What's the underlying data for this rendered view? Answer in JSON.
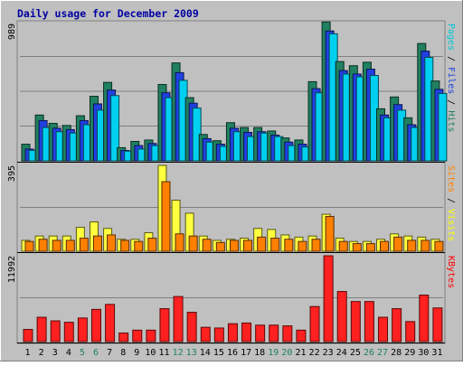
{
  "chart_data": {
    "type": "bar",
    "title": "Daily usage for December 2009",
    "days": [
      "1",
      "2",
      "3",
      "4",
      "5",
      "6",
      "7",
      "8",
      "9",
      "10",
      "11",
      "12",
      "13",
      "14",
      "15",
      "16",
      "17",
      "18",
      "19",
      "20",
      "21",
      "22",
      "23",
      "24",
      "25",
      "26",
      "27",
      "28",
      "29",
      "30",
      "31"
    ],
    "weekend_days": [
      "5",
      "6",
      "12",
      "13",
      "19",
      "20",
      "26",
      "27"
    ],
    "panels": [
      {
        "id": "hits",
        "max_label": "989",
        "ymax": 989,
        "side_label": [
          {
            "text": "Pages",
            "color": "#00c8d8"
          },
          {
            "text": " / ",
            "color": "#000000"
          },
          {
            "text": "Files",
            "color": "#2040e0"
          },
          {
            "text": " / ",
            "color": "#000000"
          },
          {
            "text": "Hits",
            "color": "#208060"
          }
        ],
        "series": [
          {
            "name": "Hits",
            "color": "#208060",
            "values": [
              120,
              330,
              270,
              255,
              325,
              465,
              565,
              95,
              140,
              150,
              550,
              705,
              455,
              190,
              145,
              275,
              240,
              240,
              215,
              165,
              150,
              570,
              1000,
              715,
              685,
              710,
              375,
              460,
              310,
              845,
              575
            ]
          },
          {
            "name": "Files",
            "color": "#2040e0",
            "values": [
              85,
              290,
              235,
              225,
              290,
              410,
              510,
              75,
              110,
              125,
              490,
              635,
              415,
              160,
              120,
              235,
              205,
              210,
              185,
              135,
              120,
              520,
              935,
              650,
              625,
              660,
              330,
              405,
              260,
              790,
              515
            ]
          },
          {
            "name": "Pages",
            "color": "#00d0f0",
            "values": [
              75,
              240,
              210,
              200,
              260,
              365,
              470,
              70,
              85,
              110,
              455,
              580,
              380,
              135,
              105,
              210,
              175,
              200,
              175,
              110,
              100,
              490,
              915,
              625,
              605,
              615,
              310,
              365,
              240,
              745,
              485
            ]
          }
        ]
      },
      {
        "id": "visits",
        "max_label": "395",
        "ymax": 395,
        "side_label": [
          {
            "text": "Sites",
            "color": "#ff8000"
          },
          {
            "text": " / ",
            "color": "#000000"
          },
          {
            "text": "Visits",
            "color": "#ffff00"
          }
        ],
        "series": [
          {
            "name": "Visits",
            "color": "#ffff40",
            "values": [
              50,
              70,
              70,
              70,
              110,
              135,
              105,
              55,
              55,
              85,
              395,
              235,
              175,
              70,
              50,
              55,
              60,
              105,
              100,
              75,
              65,
              70,
              170,
              60,
              45,
              45,
              55,
              80,
              70,
              65,
              55
            ]
          },
          {
            "name": "Sites",
            "color": "#ff8000",
            "values": [
              45,
              55,
              50,
              50,
              60,
              70,
              75,
              50,
              45,
              60,
              320,
              80,
              70,
              55,
              40,
              50,
              50,
              65,
              60,
              55,
              45,
              55,
              160,
              45,
              35,
              35,
              45,
              65,
              50,
              50,
              45
            ]
          }
        ]
      },
      {
        "id": "kbytes",
        "max_label": "11992",
        "ymax": 11992,
        "side_label": [
          {
            "text": "KBytes",
            "color": "#ff0000"
          }
        ],
        "series": [
          {
            "name": "KBytes",
            "color": "#ff2020",
            "values": [
              1700,
              3400,
              2900,
              2700,
              3300,
              4500,
              5200,
              1200,
              1600,
              1600,
              4600,
              6300,
              4100,
              2000,
              1900,
              2500,
              2600,
              2300,
              2300,
              2200,
              1600,
              4900,
              11992,
              7000,
              5600,
              5600,
              3400,
              4600,
              2800,
              6500,
              4700
            ]
          }
        ]
      }
    ]
  }
}
